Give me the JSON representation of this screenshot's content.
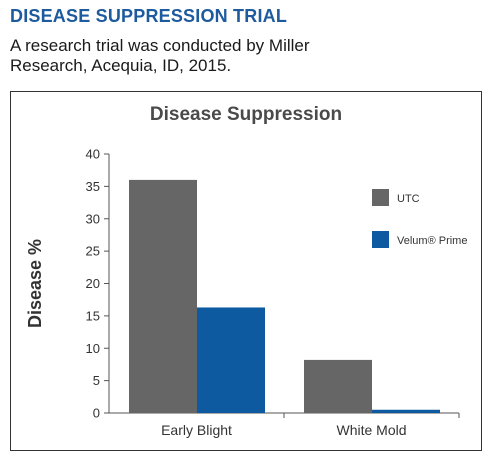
{
  "header": {
    "title": "DISEASE SUPPRESSION TRIAL",
    "description": "A research trial was conducted by Miller Research, Acequia, ID, 2015."
  },
  "colors": {
    "heading": "#1d5a9e",
    "utc": "#666666",
    "velum": "#0d5aa0"
  },
  "chart_data": {
    "type": "bar",
    "title": "Disease Suppression",
    "ylabel": "Disease %",
    "xlabel": "",
    "categories": [
      "Early Blight",
      "White Mold"
    ],
    "series": [
      {
        "name": "UTC",
        "values": [
          36,
          8.2
        ]
      },
      {
        "name": "Velum® Prime",
        "values": [
          16.3,
          0.5
        ]
      }
    ],
    "ylim": [
      0,
      40
    ],
    "yticks": [
      0,
      5,
      10,
      15,
      20,
      25,
      30,
      35,
      40
    ],
    "legend": "right",
    "grid": false
  }
}
